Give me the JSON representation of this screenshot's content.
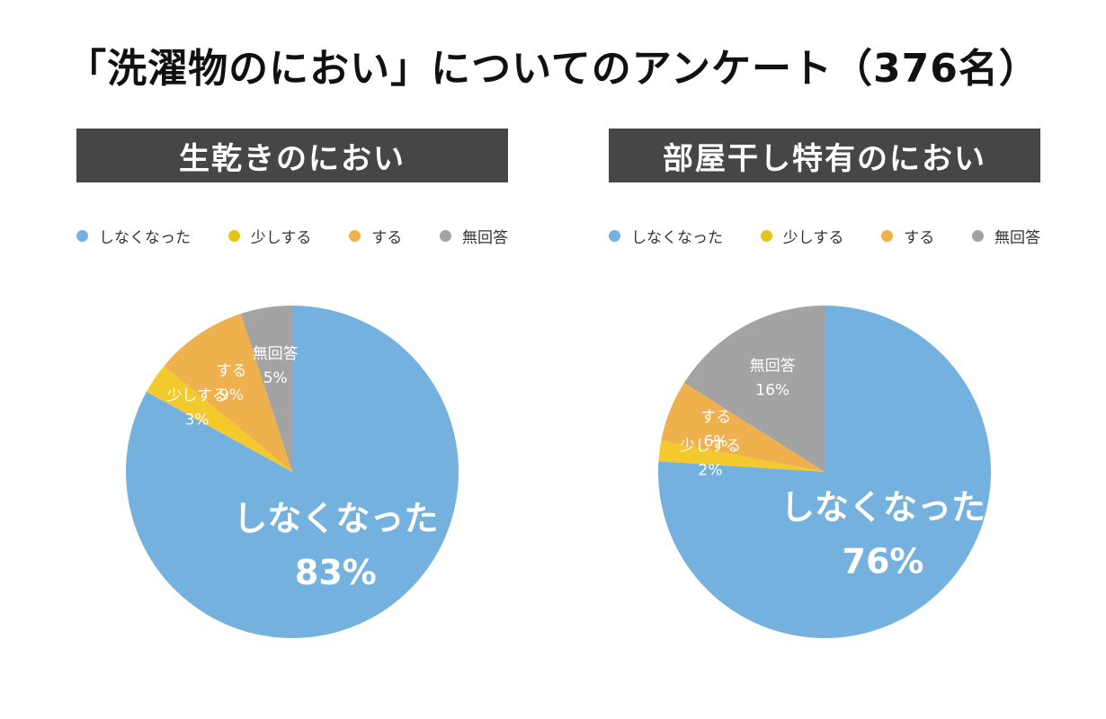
{
  "title": "「洗濯物のにおい」についてのアンケート（376名）",
  "colors": {
    "none": "#74b1df",
    "little": "#f4c92d",
    "does": "#efb04e",
    "noanswer": "#a3a3a3",
    "banner": "#464646"
  },
  "legend": {
    "items": [
      {
        "label": "しなくなった",
        "color": "#74b1df"
      },
      {
        "label": "少しする",
        "color": "#e6c41f"
      },
      {
        "label": "する",
        "color": "#efb04e"
      },
      {
        "label": "無回答",
        "color": "#a3a3a3"
      }
    ]
  },
  "chart_data": [
    {
      "type": "pie",
      "title": "生乾きのにおい",
      "slices": [
        {
          "label": "しなくなった",
          "value": 83,
          "display": "83%",
          "color": "#74b1df"
        },
        {
          "label": "少しする",
          "value": 3,
          "display": "3%",
          "color": "#f4c92d"
        },
        {
          "label": "する",
          "value": 9,
          "display": "9%",
          "color": "#efb04e"
        },
        {
          "label": "無回答",
          "value": 5,
          "display": "5%",
          "color": "#a3a3a3"
        }
      ]
    },
    {
      "type": "pie",
      "title": "部屋干し特有のにおい",
      "slices": [
        {
          "label": "しなくなった",
          "value": 76,
          "display": "76%",
          "color": "#74b1df"
        },
        {
          "label": "少しする",
          "value": 2,
          "display": "2%",
          "color": "#f4c92d"
        },
        {
          "label": "する",
          "value": 6,
          "display": "6%",
          "color": "#efb04e"
        },
        {
          "label": "無回答",
          "value": 16,
          "display": "16%",
          "color": "#a3a3a3"
        }
      ]
    }
  ]
}
